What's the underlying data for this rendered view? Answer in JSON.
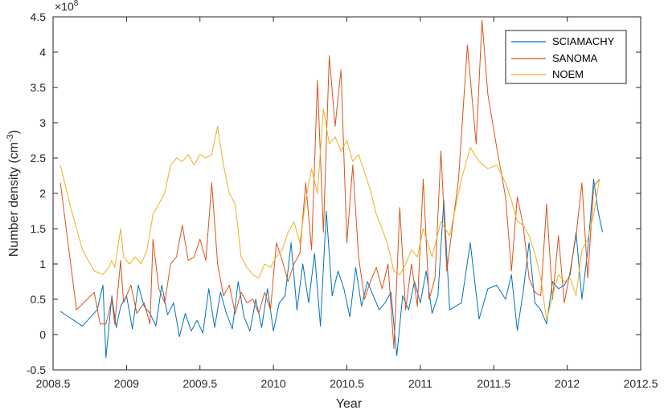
{
  "chart_data": {
    "type": "line",
    "title": "",
    "xlabel": "Year",
    "ylabel": "Number density",
    "ylabel_unit": "(cm",
    "ylabel_unit_exp": "-3",
    "ylabel_unit_close": ")",
    "y_multiplier": "×10",
    "y_multiplier_exp": "8",
    "xlim": [
      2008.5,
      2012.5
    ],
    "ylim": [
      -0.5,
      4.5
    ],
    "x_ticks": [
      2008.5,
      2009,
      2009.5,
      2010,
      2010.5,
      2011,
      2011.5,
      2012,
      2012.5
    ],
    "x_tick_labels": [
      "2008.5",
      "2009",
      "2009.5",
      "2010",
      "2010.5",
      "2011",
      "2011.5",
      "2012",
      "2012.5"
    ],
    "y_ticks": [
      -0.5,
      0,
      0.5,
      1,
      1.5,
      2,
      2.5,
      3,
      3.5,
      4,
      4.5
    ],
    "y_tick_labels": [
      "-0.5",
      "0",
      "0.5",
      "1",
      "1.5",
      "2",
      "2.5",
      "3",
      "3.5",
      "4",
      "4.5"
    ],
    "grid": false,
    "legend_position": "top-right",
    "series": [
      {
        "name": "SCIAMACHY",
        "color": "#0072BD",
        "x": [
          2008.55,
          2008.7,
          2008.8,
          2008.84,
          2008.86,
          2008.9,
          2008.93,
          2008.96,
          2009.0,
          2009.04,
          2009.08,
          2009.12,
          2009.16,
          2009.2,
          2009.24,
          2009.28,
          2009.32,
          2009.36,
          2009.4,
          2009.44,
          2009.48,
          2009.52,
          2009.56,
          2009.6,
          2009.64,
          2009.68,
          2009.72,
          2009.76,
          2009.8,
          2009.84,
          2009.88,
          2009.92,
          2009.96,
          2010.0,
          2010.04,
          2010.08,
          2010.12,
          2010.16,
          2010.2,
          2010.24,
          2010.28,
          2010.32,
          2010.36,
          2010.4,
          2010.44,
          2010.48,
          2010.52,
          2010.56,
          2010.6,
          2010.64,
          2010.68,
          2010.72,
          2010.76,
          2010.8,
          2010.84,
          2010.88,
          2010.92,
          2010.96,
          2011.0,
          2011.04,
          2011.08,
          2011.12,
          2011.16,
          2011.2,
          2011.28,
          2011.34,
          2011.4,
          2011.46,
          2011.52,
          2011.58,
          2011.62,
          2011.66,
          2011.7,
          2011.74,
          2011.78,
          2011.82,
          2011.86,
          2011.9,
          2011.94,
          2011.98,
          2012.02,
          2012.06,
          2012.1,
          2012.14,
          2012.18,
          2012.21,
          2012.24
        ],
        "values": [
          0.33,
          0.12,
          0.35,
          0.7,
          -0.33,
          0.55,
          0.1,
          0.4,
          0.55,
          0.08,
          0.7,
          0.4,
          0.3,
          0.12,
          0.7,
          0.28,
          0.45,
          -0.03,
          0.3,
          0.05,
          0.2,
          0.02,
          0.65,
          0.1,
          0.6,
          0.3,
          0.08,
          0.75,
          0.25,
          0.05,
          0.5,
          0.1,
          0.65,
          0.05,
          0.45,
          0.55,
          1.3,
          0.35,
          1.0,
          0.45,
          1.15,
          0.12,
          1.75,
          0.55,
          0.9,
          0.65,
          0.25,
          0.95,
          0.4,
          0.75,
          0.55,
          0.35,
          0.45,
          0.6,
          -0.3,
          0.55,
          0.35,
          0.75,
          0.45,
          0.9,
          0.3,
          0.55,
          1.9,
          0.35,
          0.45,
          1.3,
          0.22,
          0.65,
          0.7,
          0.5,
          0.85,
          0.06,
          0.6,
          1.3,
          0.45,
          0.35,
          0.15,
          0.75,
          0.65,
          0.7,
          0.85,
          1.45,
          0.5,
          1.2,
          2.2,
          1.75,
          1.45
        ]
      },
      {
        "name": "SANOMA",
        "color": "#D95319",
        "x": [
          2008.55,
          2008.66,
          2008.78,
          2008.82,
          2008.86,
          2008.9,
          2008.92,
          2008.96,
          2008.98,
          2009.03,
          2009.07,
          2009.12,
          2009.16,
          2009.18,
          2009.22,
          2009.26,
          2009.3,
          2009.34,
          2009.38,
          2009.42,
          2009.46,
          2009.5,
          2009.54,
          2009.58,
          2009.62,
          2009.66,
          2009.7,
          2009.74,
          2009.78,
          2009.82,
          2009.86,
          2009.9,
          2009.94,
          2009.98,
          2010.02,
          2010.06,
          2010.1,
          2010.14,
          2010.18,
          2010.22,
          2010.26,
          2010.3,
          2010.34,
          2010.38,
          2010.42,
          2010.46,
          2010.5,
          2010.54,
          2010.58,
          2010.62,
          2010.66,
          2010.7,
          2010.74,
          2010.78,
          2010.82,
          2010.86,
          2010.9,
          2010.94,
          2010.98,
          2011.02,
          2011.06,
          2011.1,
          2011.14,
          2011.18,
          2011.26,
          2011.32,
          2011.38,
          2011.42,
          2011.46,
          2011.52,
          2011.58,
          2011.62,
          2011.66,
          2011.7,
          2011.74,
          2011.78,
          2011.82,
          2011.86,
          2011.9,
          2011.94,
          2011.98,
          2012.02,
          2012.06,
          2012.1,
          2012.14,
          2012.18,
          2012.22
        ],
        "values": [
          2.15,
          0.35,
          0.6,
          0.15,
          0.15,
          0.5,
          0.15,
          1.05,
          0.45,
          0.7,
          0.3,
          0.45,
          0.15,
          1.35,
          0.65,
          0.45,
          1.0,
          1.1,
          1.55,
          1.05,
          1.1,
          1.35,
          1.05,
          2.15,
          1.0,
          0.55,
          0.7,
          0.3,
          0.6,
          0.45,
          0.5,
          0.3,
          0.6,
          0.35,
          1.3,
          1.05,
          0.75,
          1.0,
          1.15,
          2.15,
          1.2,
          3.6,
          1.45,
          3.95,
          2.95,
          3.75,
          1.3,
          2.4,
          1.1,
          0.5,
          0.75,
          0.95,
          0.65,
          1.0,
          -0.2,
          1.8,
          0.35,
          1.0,
          0.4,
          2.2,
          0.5,
          0.8,
          2.6,
          0.9,
          2.2,
          4.1,
          2.7,
          4.45,
          3.4,
          2.65,
          1.95,
          0.9,
          1.95,
          1.55,
          0.8,
          0.6,
          0.55,
          1.85,
          0.5,
          1.4,
          0.45,
          0.9,
          1.4,
          2.15,
          0.8,
          2.1,
          2.2
        ]
      },
      {
        "name": "NOEM",
        "color": "#EDB120",
        "x": [
          2008.55,
          2008.62,
          2008.7,
          2008.78,
          2008.84,
          2008.88,
          2008.9,
          2008.92,
          2008.96,
          2008.98,
          2009.02,
          2009.06,
          2009.1,
          2009.14,
          2009.18,
          2009.22,
          2009.26,
          2009.3,
          2009.34,
          2009.38,
          2009.42,
          2009.46,
          2009.5,
          2009.54,
          2009.58,
          2009.62,
          2009.66,
          2009.7,
          2009.74,
          2009.78,
          2009.82,
          2009.86,
          2009.9,
          2009.94,
          2009.98,
          2010.02,
          2010.06,
          2010.1,
          2010.14,
          2010.18,
          2010.22,
          2010.26,
          2010.3,
          2010.34,
          2010.38,
          2010.42,
          2010.46,
          2010.5,
          2010.54,
          2010.58,
          2010.62,
          2010.66,
          2010.7,
          2010.74,
          2010.78,
          2010.82,
          2010.86,
          2010.9,
          2010.94,
          2010.98,
          2011.02,
          2011.08,
          2011.14,
          2011.2,
          2011.28,
          2011.34,
          2011.4,
          2011.46,
          2011.52,
          2011.58,
          2011.62,
          2011.66,
          2011.7,
          2011.74,
          2011.78,
          2011.82,
          2011.86,
          2011.9,
          2011.94,
          2011.98,
          2012.02,
          2012.06,
          2012.1,
          2012.14,
          2012.18,
          2012.22
        ],
        "values": [
          2.4,
          1.8,
          1.2,
          0.9,
          0.85,
          0.95,
          1.05,
          0.95,
          1.5,
          1.1,
          1.0,
          1.1,
          1.0,
          1.2,
          1.7,
          1.85,
          2.0,
          2.4,
          2.5,
          2.45,
          2.55,
          2.4,
          2.55,
          2.5,
          2.55,
          2.95,
          2.4,
          2.0,
          1.85,
          1.1,
          0.95,
          0.85,
          0.8,
          1.0,
          0.95,
          1.1,
          1.2,
          1.45,
          1.6,
          1.3,
          1.9,
          2.35,
          2.0,
          3.2,
          2.7,
          2.8,
          2.6,
          2.75,
          2.45,
          2.55,
          2.3,
          2.05,
          1.7,
          1.5,
          1.25,
          0.9,
          0.85,
          1.0,
          1.2,
          1.1,
          1.5,
          1.1,
          1.6,
          1.4,
          2.2,
          2.65,
          2.45,
          2.35,
          2.4,
          2.15,
          1.9,
          1.6,
          1.55,
          1.4,
          1.15,
          0.8,
          0.2,
          0.55,
          0.85,
          0.75,
          0.8,
          0.55,
          1.2,
          1.35,
          1.7,
          2.2
        ]
      }
    ]
  }
}
